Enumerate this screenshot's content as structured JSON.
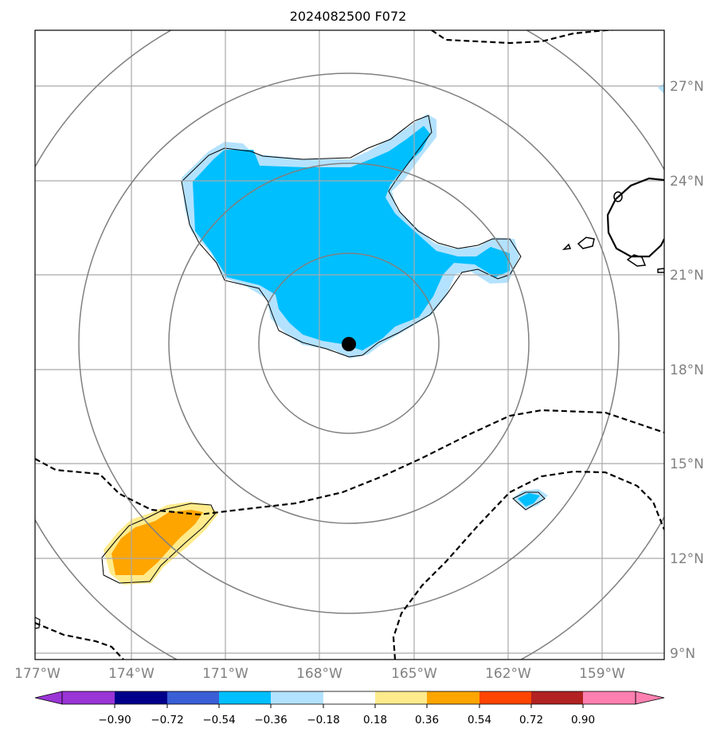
{
  "title": "2024082500 F072",
  "map": {
    "lon_labels": [
      "177°W",
      "174°W",
      "171°W",
      "168°W",
      "165°W",
      "162°W",
      "159°W"
    ],
    "lat_labels": [
      "27°N",
      "24°N",
      "21°N",
      "18°N",
      "15°N",
      "12°N",
      "9°N"
    ],
    "storm_center": {
      "lon": -167.0,
      "lat": 18.8
    },
    "range_rings_count": 4,
    "gridline_color": "#a9a9a9",
    "ring_color": "#808080"
  },
  "colorbar": {
    "ticks": [
      "−0.90",
      "−0.72",
      "−0.54",
      "−0.36",
      "−0.18",
      "0.18",
      "0.36",
      "0.54",
      "0.72",
      "0.90"
    ],
    "colors": [
      "#9a35d6",
      "#00008b",
      "#3a5ed6",
      "#00bfff",
      "#b3e2ff",
      "#ffffff",
      "#ffeb8c",
      "#ffa500",
      "#ff4500",
      "#b22222",
      "#ff80b0"
    ]
  },
  "colors": {
    "cyan_fill": "#00bfff",
    "light_cyan_fill": "#b3e2ff",
    "orange_fill": "#ffa500",
    "yellow_fill": "#ffeb8c"
  }
}
